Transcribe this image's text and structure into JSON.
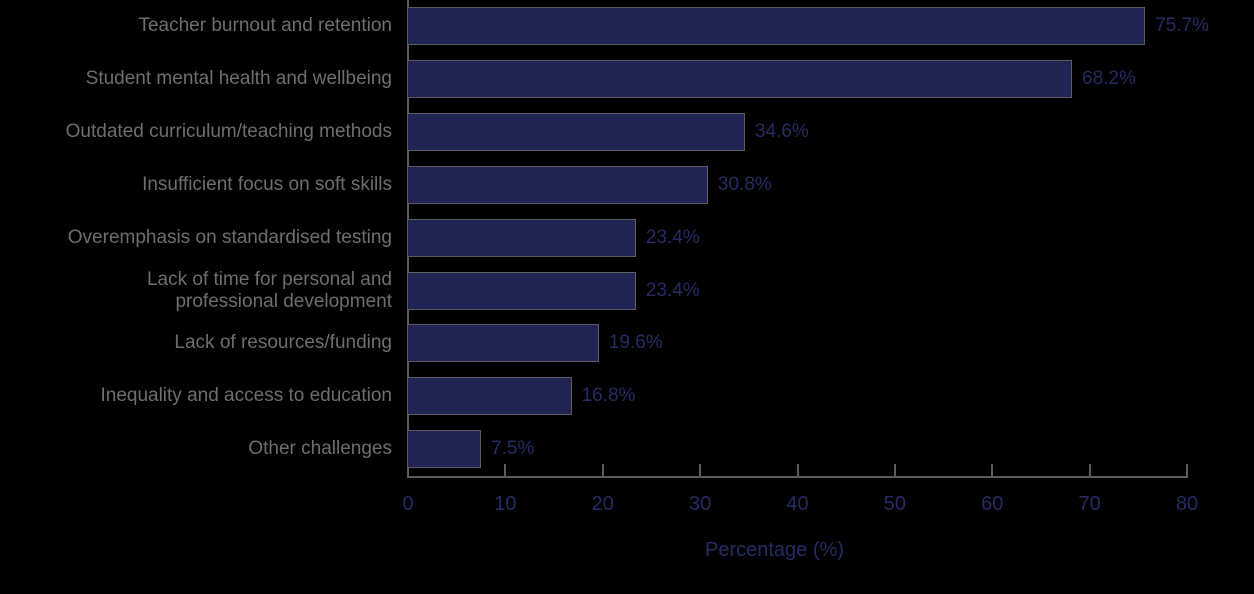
{
  "chart_data": {
    "type": "bar",
    "orientation": "horizontal",
    "title": "",
    "xlabel": "Percentage (%)",
    "ylabel": "",
    "xlim": [
      0,
      80
    ],
    "xticks": [
      0,
      10,
      20,
      30,
      40,
      50,
      60,
      70,
      80
    ],
    "grid": false,
    "legend": null,
    "categories": [
      "Teacher burnout and retention",
      "Student mental health and wellbeing",
      "Outdated curriculum/teaching methods",
      "Insufficient focus on soft skills",
      "Overemphasis on standardised testing",
      "Lack of time for personal and\nprofessional development",
      "Lack of resources/funding",
      "Inequality and access to education",
      "Other challenges"
    ],
    "values": [
      75.7,
      68.2,
      34.6,
      30.8,
      23.4,
      23.4,
      19.6,
      16.8,
      7.5
    ],
    "value_labels": [
      "75.7%",
      "68.2%",
      "34.6%",
      "30.8%",
      "23.4%",
      "23.4%",
      "19.6%",
      "16.8%",
      "7.5%"
    ],
    "colors": {
      "bar_fill": "#1f2452",
      "bar_edge": "#5c5c5c",
      "value_text": "#262b63",
      "category_text": "#6e6e6e",
      "background": "#000000"
    }
  }
}
